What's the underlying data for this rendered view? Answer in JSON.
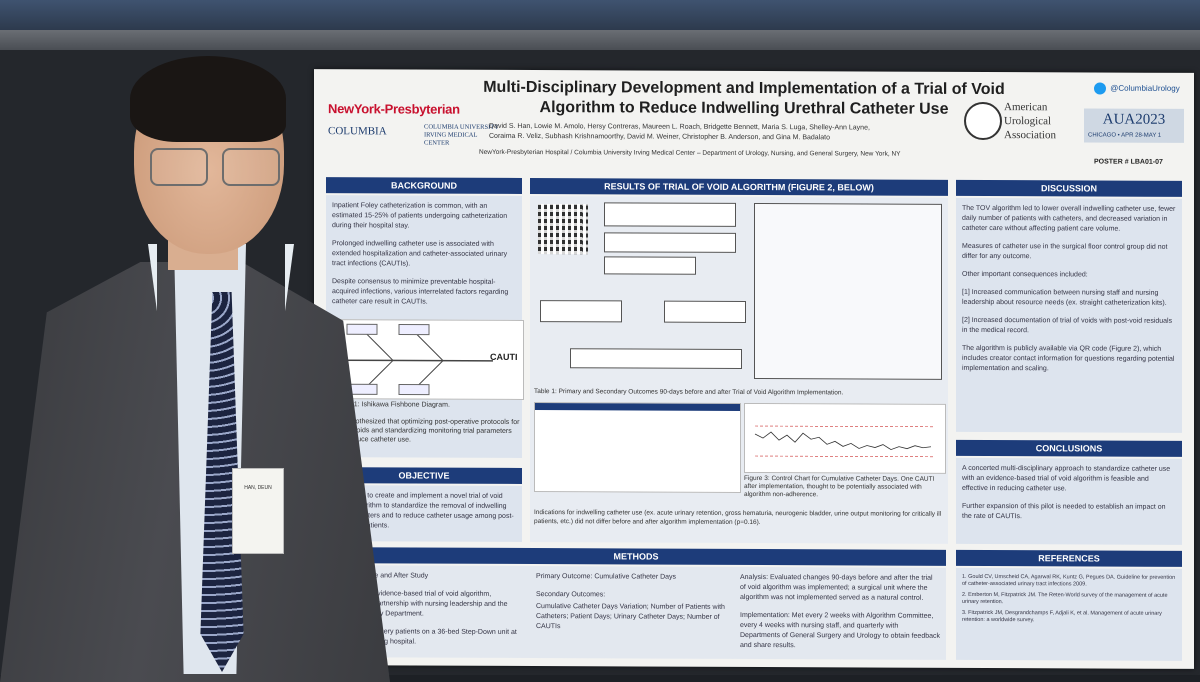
{
  "poster": {
    "title_line1": "Multi-Disciplinary Development and Implementation of a Trial of Void",
    "title_line2": "Algorithm to Reduce Indwelling Urethral Catheter Use",
    "authors_line1": "David S. Han, Lowie M. Amolo, Hersy Contreras, Maureen L. Roach, Bridgette Bennett, Maria S. Luga, Shelley-Ann Layne,",
    "authors_line2": "Coraima R. Veliz, Subhash Krishnamoorthy, David M. Weiner, Christopher B. Anderson, and Gina M. Badalato",
    "affiliation": "NewYork-Presbyterian Hospital / Columbia University Irving Medical Center – Department of Urology, Nursing, and General Surgery, New York, NY",
    "nyp_logo": "NewYork-Presbyterian",
    "columbia_logo": "COLUMBIA",
    "columbia_sub": "COLUMBIA UNIVERSITY IRVING MEDICAL CENTER",
    "twitter": "@ColumbiaUrology",
    "aua_name": "American Urological Association",
    "aua_event": "AUA2023",
    "aua_date": "CHICAGO • APR 28-MAY 1",
    "poster_number": "POSTER # LBA01-07"
  },
  "sections": {
    "background": {
      "heading": "BACKGROUND",
      "p1": "Inpatient Foley catheterization is common, with an estimated 15-25% of patients undergoing catheterization during their hospital stay.",
      "p2": "Prolonged indwelling catheter use is associated with extended hospitalization and catheter-associated urinary tract infections (CAUTIs).",
      "p3": "Despite consensus to minimize preventable hospital-acquired infections, various interrelated factors regarding catheter care result in CAUTIs.",
      "fig1_caption": "Figure 1: Ishikawa Fishbone Diagram.",
      "cauti": "CAUTI",
      "hyp": "We hypothesized that optimizing post-operative protocols for trial of voids and standardizing monitoring trial parameters may reduce catheter use."
    },
    "objective": {
      "heading": "OBJECTIVE",
      "text": "We sought to create and implement a novel trial of void (TOV) algorithm to standardize the removal of indwelling Foley catheters and to reduce catheter usage among post-operative patients."
    },
    "results": {
      "heading": "RESULTS OF TRIAL OF VOID ALGORITHM (FIGURE 2, BELOW)",
      "table_caption": "Table 1: Primary and Secondary Outcomes 90-days before and after Trial of Void Algorithm Implementation.",
      "fig3_caption": "Figure 3: Control Chart for Cumulative Catheter Days. One CAUTI after implementation, thought to be potentially associated with algorithm non-adherence.",
      "indications": "Indications for indwelling catheter use (ex. acute urinary retention, gross hematuria, neurogenic bladder, urine output monitoring for critically ill patients, etc.) did not differ before and after algorithm implementation (p=0.16)."
    },
    "discussion": {
      "heading": "DISCUSSION",
      "p1": "The TOV algorithm led to lower overall indwelling catheter use, fewer daily number of patients with catheters, and decreased variation in catheter care without affecting patient care volume.",
      "p2": "Measures of catheter use in the surgical floor control group did not differ for any outcome.",
      "p3": "Other important consequences included:",
      "p4": "[1] Increased communication between nursing staff and nursing leadership about resource needs (ex. straight catheterization kits).",
      "p5": "[2] Increased documentation of trial of voids with post-void residuals in the medical record.",
      "p6": "The algorithm is publicly available via QR code (Figure 2), which includes creator contact information for questions regarding potential implementation and scaling."
    },
    "conclusions": {
      "heading": "CONCLUSIONS",
      "p1": "A concerted multi-disciplinary approach to standardize catheter use with an evidence-based trial of void algorithm is feasible and effective in reducing catheter use.",
      "p2": "Further expansion of this pilot is needed to establish an impact on the rate of CAUTIs."
    },
    "methods": {
      "heading": "METHODS",
      "design": "Design: Before and After Study",
      "intervention": "Intervention: Evidence-based trial of void algorithm, developed in partnership with nursing leadership and the General Surgery Department.",
      "population": "Population: Surgery patients on a 36-bed Step-Down unit at an urban teaching hospital.",
      "primary": "Primary Outcome: Cumulative Catheter Days",
      "secondary_head": "Secondary Outcomes:",
      "secondary_items": "Cumulative Catheter Days Variation; Number of Patients with Catheters; Patient Days; Urinary Catheter Days; Number of CAUTIs",
      "analysis": "Analysis: Evaluated changes 90-days before and after the trial of void algorithm was implemented; a surgical unit where the algorithm was not implemented served as a natural control.",
      "implementation": "Implementation: Met every 2 weeks with Algorithm Committee, every 4 weeks with nursing staff, and quarterly with Departments of General Surgery and Urology to obtain feedback and share results."
    },
    "references": {
      "heading": "REFERENCES",
      "r1": "1. Gould CV, Umscheid CA, Agarwal RK, Kuntz G, Pegues DA. Guideline for prevention of catheter-associated urinary tract infections 2009.",
      "r2": "2. Emberton M, Fitzpatrick JM. The Reten-World survey of the management of acute urinary retention.",
      "r3": "3. Fitzpatrick JM, Desgrandchamps F, Adjali K, et al. Management of acute urinary retention: a worldwide survey."
    }
  },
  "badge_text": "HAN, DEUN"
}
